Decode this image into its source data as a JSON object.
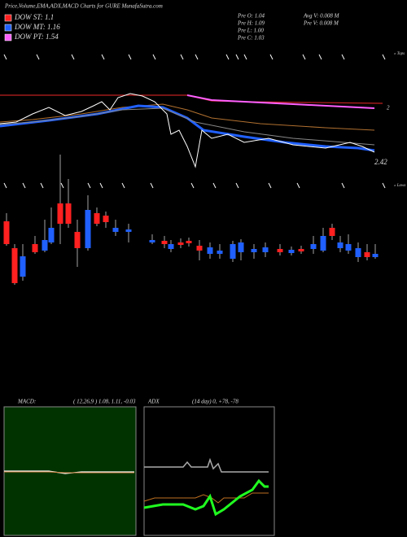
{
  "header": {
    "title": "Price,Volume,EMA,ADX,MACD Charts for GURE MunafaSutra.com"
  },
  "legend": [
    {
      "label": "DOW ST: 1.1",
      "color": "#ff2020"
    },
    {
      "label": "DOW MT: 1.16",
      "color": "#2060ff"
    },
    {
      "label": "DOW PT: 1.54",
      "color": "#ff60ff"
    }
  ],
  "info": {
    "left": [
      "Pre  O: 1.04",
      "Pre  H: 1.09",
      "Pre  L: 1.00",
      "Pre  C: 1.03"
    ],
    "right": [
      "Avg V: 0.008  M",
      "Pre  V: 0.008  M"
    ]
  },
  "price_labels": {
    "tops": "« Tops",
    "lows": "« Lows",
    "upper": "2",
    "last": "2.42"
  },
  "macd": {
    "name": "MACD:",
    "params": "( 12,26,9 ) 1.08, 1.11, -0.03"
  },
  "adx": {
    "name": "ADX",
    "params": "(14  day) 0, +78, -78"
  }
}
